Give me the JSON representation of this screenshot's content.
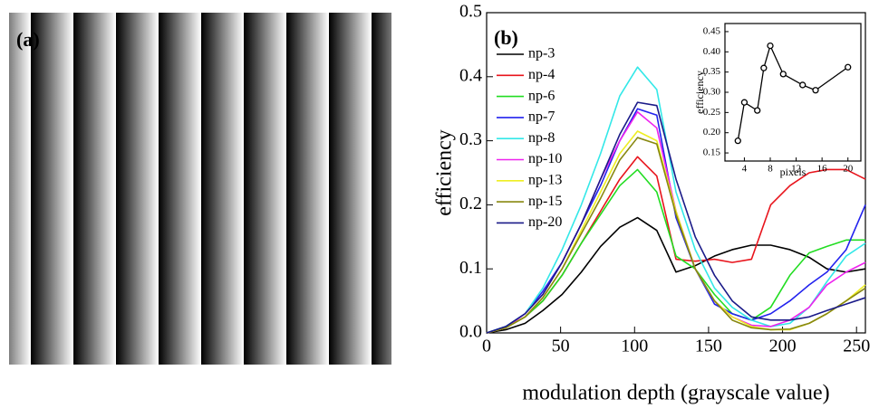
{
  "image_panel": {
    "label": "(a)"
  },
  "chart_data": [
    {
      "type": "line",
      "panel_label": "(b)",
      "x_label": "modulation depth (grayscale value)",
      "y_label": "efficiency",
      "xlim": [
        0,
        256
      ],
      "ylim": [
        0,
        0.5
      ],
      "xticks": [
        0,
        50,
        100,
        150,
        200,
        250
      ],
      "yticks": [
        {
          "value": 0,
          "label": "0.0"
        },
        0.1,
        0.2,
        0.3,
        0.4,
        {
          "value": 0.5,
          "label": "0.5"
        }
      ],
      "legend": "upper left",
      "x": [
        0,
        13,
        26,
        38,
        51,
        64,
        77,
        90,
        102,
        115,
        128,
        141,
        154,
        166,
        179,
        192,
        205,
        218,
        230,
        243,
        256
      ],
      "series": [
        {
          "name": "np-3",
          "color": "#000000",
          "values": [
            0,
            0.005,
            0.015,
            0.035,
            0.06,
            0.095,
            0.135,
            0.165,
            0.18,
            0.16,
            0.095,
            0.105,
            0.12,
            0.13,
            0.137,
            0.137,
            0.13,
            0.118,
            0.1,
            0.095,
            0.1
          ]
        },
        {
          "name": "np-4",
          "color": "#e8141c",
          "values": [
            0,
            0.008,
            0.025,
            0.05,
            0.09,
            0.14,
            0.19,
            0.24,
            0.275,
            0.245,
            0.115,
            0.112,
            0.115,
            0.11,
            0.115,
            0.2,
            0.23,
            0.25,
            0.255,
            0.255,
            0.24
          ]
        },
        {
          "name": "np-6",
          "color": "#22dd22",
          "values": [
            0,
            0.008,
            0.025,
            0.05,
            0.09,
            0.14,
            0.185,
            0.23,
            0.255,
            0.22,
            0.12,
            0.1,
            0.06,
            0.03,
            0.02,
            0.04,
            0.09,
            0.125,
            0.135,
            0.145,
            0.145
          ]
        },
        {
          "name": "np-7",
          "color": "#2222ee",
          "values": [
            0,
            0.01,
            0.03,
            0.065,
            0.11,
            0.17,
            0.23,
            0.3,
            0.35,
            0.34,
            0.18,
            0.1,
            0.045,
            0.03,
            0.02,
            0.03,
            0.05,
            0.075,
            0.095,
            0.13,
            0.2
          ]
        },
        {
          "name": "np-8",
          "color": "#33e8e8",
          "values": [
            0,
            0.01,
            0.03,
            0.07,
            0.13,
            0.2,
            0.28,
            0.37,
            0.415,
            0.38,
            0.22,
            0.13,
            0.07,
            0.04,
            0.02,
            0.01,
            0.015,
            0.04,
            0.08,
            0.12,
            0.14
          ]
        },
        {
          "name": "np-10",
          "color": "#ee22ee",
          "values": [
            0,
            0.008,
            0.03,
            0.06,
            0.11,
            0.17,
            0.24,
            0.3,
            0.345,
            0.32,
            0.19,
            0.1,
            0.05,
            0.025,
            0.012,
            0.01,
            0.02,
            0.04,
            0.075,
            0.095,
            0.11
          ]
        },
        {
          "name": "np-13",
          "color": "#eeee22",
          "values": [
            0,
            0.008,
            0.025,
            0.055,
            0.1,
            0.16,
            0.22,
            0.28,
            0.315,
            0.3,
            0.19,
            0.1,
            0.05,
            0.025,
            0.01,
            0.005,
            0.005,
            0.015,
            0.03,
            0.05,
            0.075
          ]
        },
        {
          "name": "np-15",
          "color": "#888811",
          "values": [
            0,
            0.008,
            0.025,
            0.055,
            0.1,
            0.155,
            0.21,
            0.27,
            0.305,
            0.295,
            0.185,
            0.1,
            0.05,
            0.02,
            0.008,
            0.005,
            0.006,
            0.015,
            0.03,
            0.05,
            0.07
          ]
        },
        {
          "name": "np-20",
          "color": "#1a1a88",
          "values": [
            0,
            0.01,
            0.03,
            0.06,
            0.11,
            0.17,
            0.24,
            0.31,
            0.36,
            0.355,
            0.24,
            0.15,
            0.09,
            0.05,
            0.025,
            0.02,
            0.02,
            0.025,
            0.035,
            0.045,
            0.055
          ]
        }
      ]
    },
    {
      "type": "line",
      "x_label": "pixels",
      "y_label": "efficiency",
      "markers": true,
      "color": "#000000",
      "xlim": [
        1,
        22
      ],
      "ylim": [
        0.13,
        0.47
      ],
      "xticks": [
        4,
        8,
        12,
        16,
        20
      ],
      "yticks": [
        0.15,
        {
          "value": 0.2,
          "label": "0.20"
        },
        0.25,
        {
          "value": 0.3,
          "label": "0.30"
        },
        0.35,
        {
          "value": 0.4,
          "label": "0.40"
        },
        0.45
      ],
      "x": [
        3,
        4,
        6,
        7,
        8,
        10,
        13,
        15,
        20
      ],
      "values": [
        0.18,
        0.275,
        0.255,
        0.36,
        0.415,
        0.345,
        0.318,
        0.305,
        0.362
      ]
    }
  ]
}
